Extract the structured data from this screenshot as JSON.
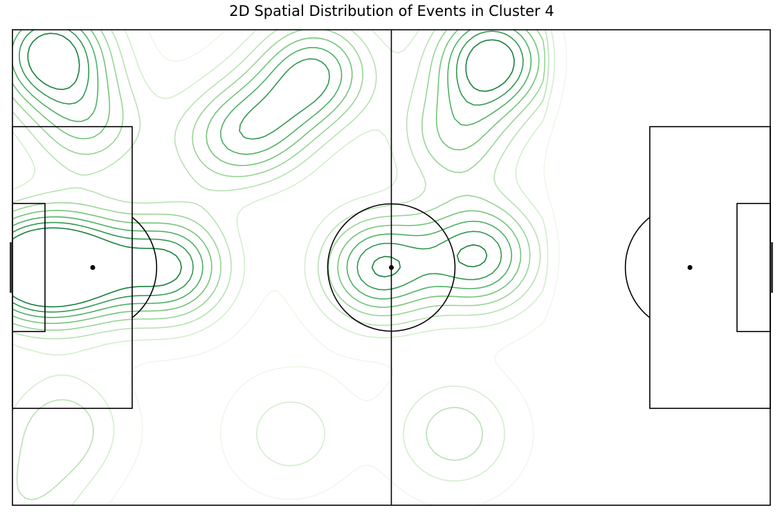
{
  "chart_data": {
    "type": "heatmap",
    "subtype": "kde-contour-on-football-pitch",
    "title": "2D Spatial Distribution of Events in Cluster 4",
    "xlabel": "",
    "ylabel": "",
    "xlim": [
      0,
      120
    ],
    "ylim": [
      0,
      80
    ],
    "grid": false,
    "legend": "none",
    "colormap": "Greens",
    "contour_levels": 8,
    "level_colors": [
      "#edf8e9",
      "#d3eecd",
      "#b7e2b1",
      "#97d494",
      "#73c476",
      "#4bb062",
      "#2f984f",
      "#157f3b"
    ],
    "pitch": {
      "length": 120,
      "width": 80,
      "center_circle_radius": 10,
      "penalty_spot_distance": 12,
      "line_color": "#000000"
    },
    "density_peaks": [
      {
        "x": 6,
        "y": 76,
        "level": 8
      },
      {
        "x": 2,
        "y": 40,
        "level": 8
      },
      {
        "x": 11,
        "y": 40,
        "level": 7
      },
      {
        "x": 25,
        "y": 40,
        "level": 7
      },
      {
        "x": 58,
        "y": 40,
        "level": 7
      },
      {
        "x": 74,
        "y": 42,
        "level": 7
      },
      {
        "x": 76,
        "y": 75,
        "level": 8
      },
      {
        "x": 48,
        "y": 73,
        "level": 6
      },
      {
        "x": 40,
        "y": 64,
        "level": 4
      },
      {
        "x": 12,
        "y": 64,
        "level": 4
      },
      {
        "x": 33,
        "y": 61,
        "level": 3
      },
      {
        "x": 70,
        "y": 62,
        "level": 4
      },
      {
        "x": 70,
        "y": 12,
        "level": 3
      },
      {
        "x": 8,
        "y": 13,
        "level": 3
      },
      {
        "x": 44,
        "y": 12,
        "level": 2
      },
      {
        "x": 2,
        "y": 1,
        "level": 2
      }
    ]
  }
}
